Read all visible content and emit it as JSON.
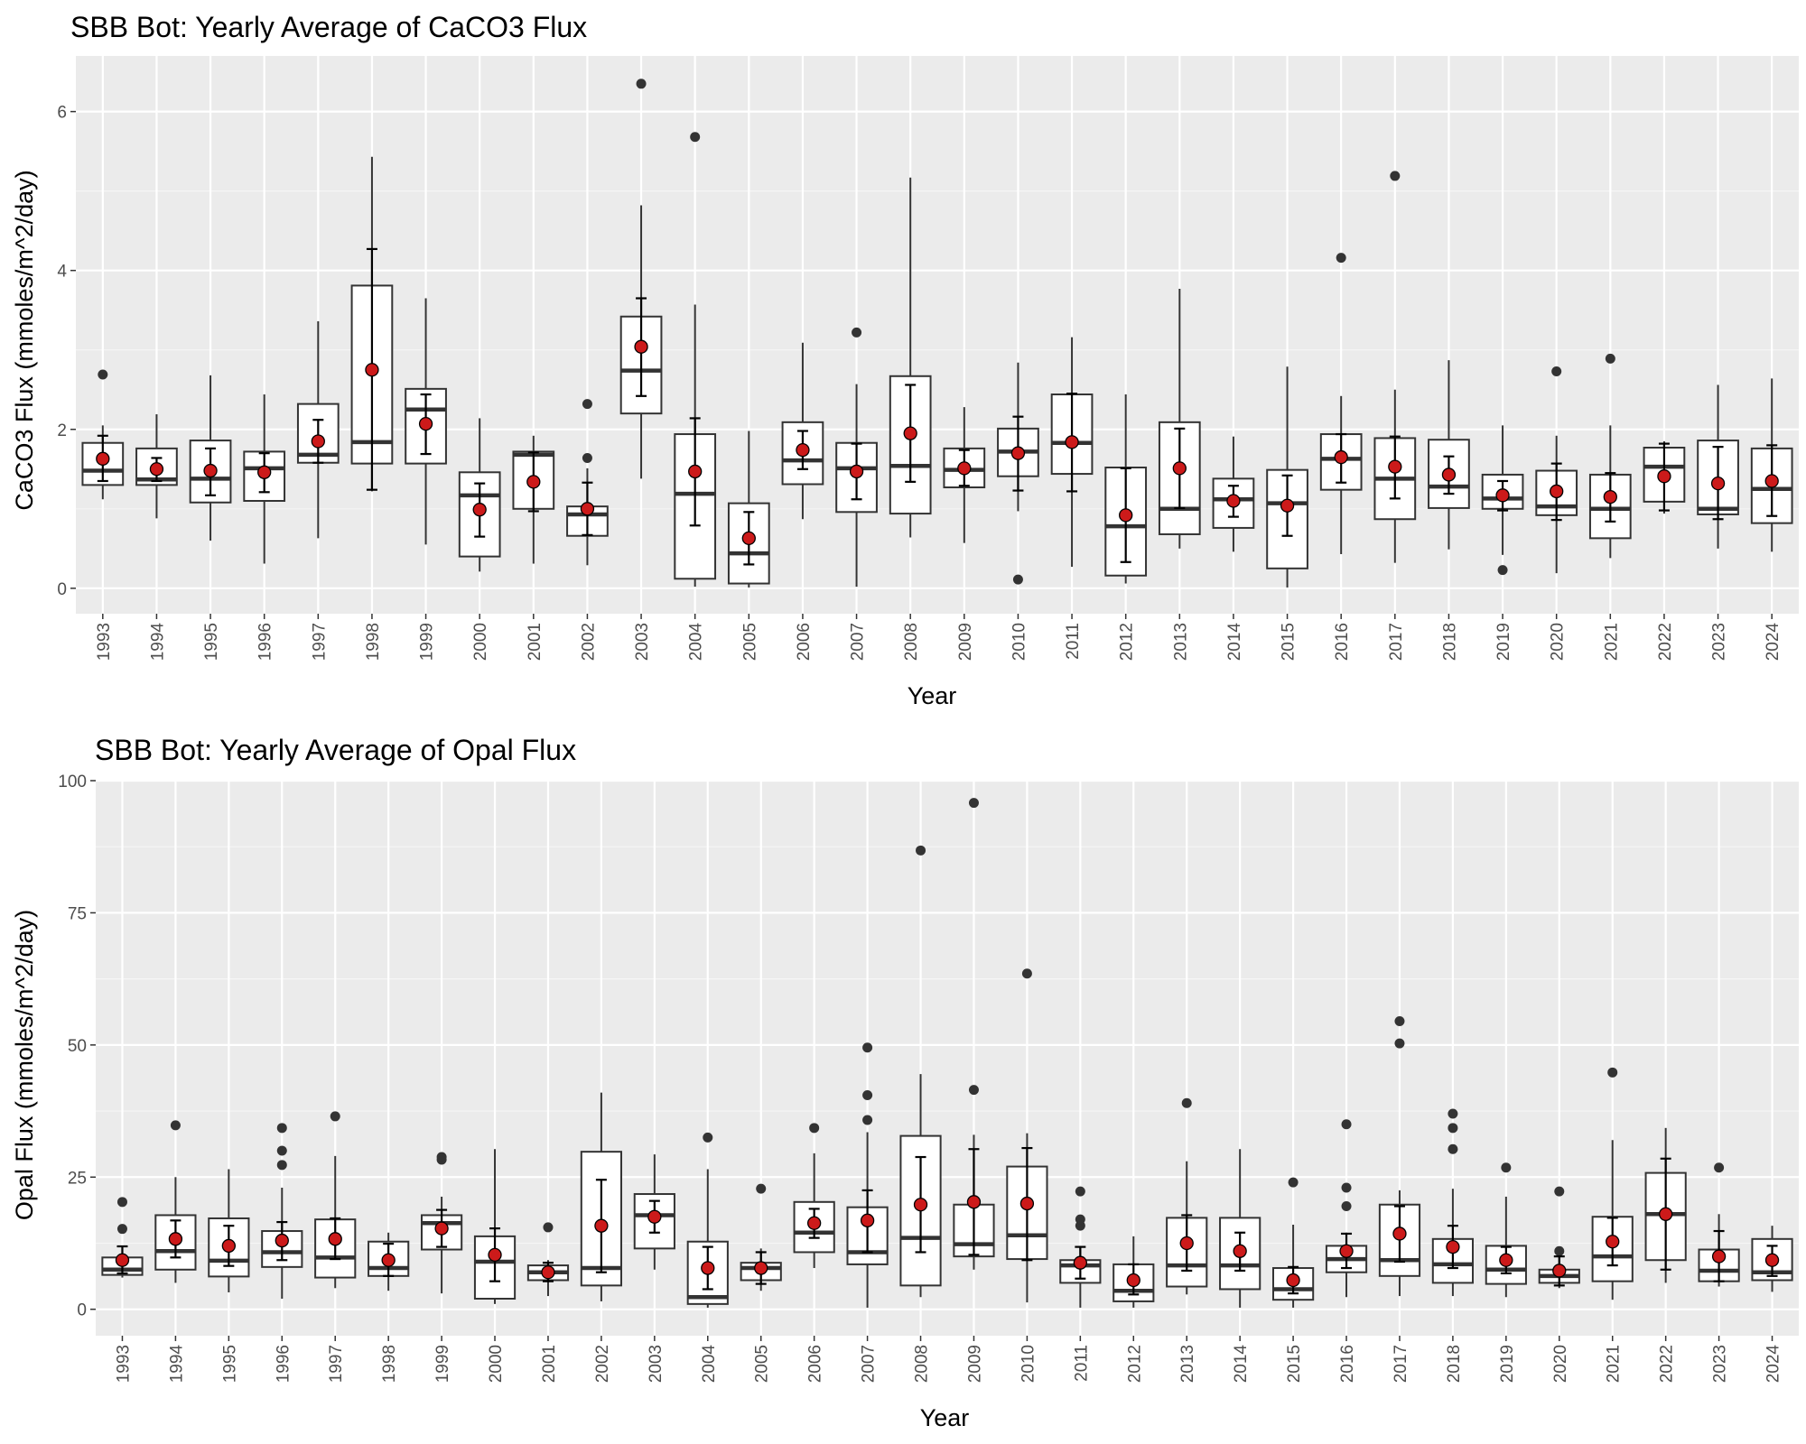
{
  "chart_data": [
    {
      "type": "boxplot",
      "title": "SBB Bot: Yearly Average of CaCO3 Flux",
      "xlabel": "Year",
      "ylabel": "CaCO3 Flux (mmoles/m^2/day)",
      "ylim": [
        -0.32,
        6.7
      ],
      "yticks": [
        0,
        2,
        4,
        6
      ],
      "grid": true,
      "mean_color": "#cc1a1a",
      "categories": [
        "1993",
        "1994",
        "1995",
        "1996",
        "1997",
        "1998",
        "1999",
        "2000",
        "2001",
        "2002",
        "2003",
        "2004",
        "2005",
        "2006",
        "2007",
        "2008",
        "2009",
        "2010",
        "2011",
        "2012",
        "2013",
        "2014",
        "2015",
        "2016",
        "2017",
        "2018",
        "2019",
        "2020",
        "2021",
        "2022",
        "2023",
        "2024"
      ],
      "boxes": [
        {
          "q1": 1.3,
          "med": 1.48,
          "q3": 1.83,
          "wlo": 1.12,
          "whi": 2.05,
          "mean": 1.63,
          "elo": 1.35,
          "ehi": 1.92,
          "out": [
            2.69
          ]
        },
        {
          "q1": 1.3,
          "med": 1.37,
          "q3": 1.76,
          "wlo": 0.88,
          "whi": 2.19,
          "mean": 1.5,
          "elo": 1.35,
          "ehi": 1.64,
          "out": []
        },
        {
          "q1": 1.08,
          "med": 1.38,
          "q3": 1.86,
          "wlo": 0.6,
          "whi": 2.68,
          "mean": 1.48,
          "elo": 1.17,
          "ehi": 1.76,
          "out": []
        },
        {
          "q1": 1.1,
          "med": 1.51,
          "q3": 1.72,
          "wlo": 0.31,
          "whi": 2.44,
          "mean": 1.46,
          "elo": 1.21,
          "ehi": 1.7,
          "out": []
        },
        {
          "q1": 1.58,
          "med": 1.68,
          "q3": 2.32,
          "wlo": 0.63,
          "whi": 3.36,
          "mean": 1.85,
          "elo": 1.58,
          "ehi": 2.12,
          "out": []
        },
        {
          "q1": 1.57,
          "med": 1.84,
          "q3": 3.81,
          "wlo": 1.22,
          "whi": 5.43,
          "mean": 2.75,
          "elo": 1.24,
          "ehi": 4.27,
          "out": []
        },
        {
          "q1": 1.57,
          "med": 2.25,
          "q3": 2.51,
          "wlo": 0.55,
          "whi": 3.65,
          "mean": 2.07,
          "elo": 1.69,
          "ehi": 2.44,
          "out": []
        },
        {
          "q1": 0.4,
          "med": 1.17,
          "q3": 1.46,
          "wlo": 0.21,
          "whi": 2.14,
          "mean": 0.99,
          "elo": 0.65,
          "ehi": 1.32,
          "out": []
        },
        {
          "q1": 1.0,
          "med": 1.68,
          "q3": 1.72,
          "wlo": 0.31,
          "whi": 1.92,
          "mean": 1.34,
          "elo": 0.97,
          "ehi": 1.71,
          "out": []
        },
        {
          "q1": 0.66,
          "med": 0.93,
          "q3": 1.03,
          "wlo": 0.29,
          "whi": 1.51,
          "mean": 1.0,
          "elo": 0.67,
          "ehi": 1.33,
          "out": [
            1.64,
            2.32
          ]
        },
        {
          "q1": 2.2,
          "med": 2.74,
          "q3": 3.42,
          "wlo": 1.38,
          "whi": 4.82,
          "mean": 3.04,
          "elo": 2.42,
          "ehi": 3.65,
          "out": [
            6.35
          ]
        },
        {
          "q1": 0.12,
          "med": 1.19,
          "q3": 1.94,
          "wlo": 0.02,
          "whi": 3.57,
          "mean": 1.47,
          "elo": 0.79,
          "ehi": 2.14,
          "out": [
            5.68
          ]
        },
        {
          "q1": 0.06,
          "med": 0.44,
          "q3": 1.07,
          "wlo": 0.01,
          "whi": 1.98,
          "mean": 0.63,
          "elo": 0.3,
          "ehi": 0.96,
          "out": []
        },
        {
          "q1": 1.31,
          "med": 1.61,
          "q3": 2.09,
          "wlo": 0.87,
          "whi": 3.09,
          "mean": 1.74,
          "elo": 1.5,
          "ehi": 1.98,
          "out": []
        },
        {
          "q1": 0.96,
          "med": 1.51,
          "q3": 1.83,
          "wlo": 0.02,
          "whi": 2.57,
          "mean": 1.47,
          "elo": 1.12,
          "ehi": 1.82,
          "out": [
            3.22
          ]
        },
        {
          "q1": 0.94,
          "med": 1.54,
          "q3": 2.67,
          "wlo": 0.64,
          "whi": 5.17,
          "mean": 1.95,
          "elo": 1.34,
          "ehi": 2.56,
          "out": []
        },
        {
          "q1": 1.27,
          "med": 1.49,
          "q3": 1.76,
          "wlo": 0.57,
          "whi": 2.28,
          "mean": 1.51,
          "elo": 1.29,
          "ehi": 1.74,
          "out": []
        },
        {
          "q1": 1.41,
          "med": 1.72,
          "q3": 2.01,
          "wlo": 0.97,
          "whi": 2.84,
          "mean": 1.7,
          "elo": 1.23,
          "ehi": 2.16,
          "out": [
            0.11
          ]
        },
        {
          "q1": 1.44,
          "med": 1.83,
          "q3": 2.44,
          "wlo": 0.27,
          "whi": 3.16,
          "mean": 1.84,
          "elo": 1.22,
          "ehi": 2.45,
          "out": []
        },
        {
          "q1": 0.16,
          "med": 0.78,
          "q3": 1.52,
          "wlo": 0.06,
          "whi": 2.44,
          "mean": 0.92,
          "elo": 0.33,
          "ehi": 1.51,
          "out": []
        },
        {
          "q1": 0.68,
          "med": 1.0,
          "q3": 2.09,
          "wlo": 0.5,
          "whi": 3.77,
          "mean": 1.51,
          "elo": 1.01,
          "ehi": 2.01,
          "out": []
        },
        {
          "q1": 0.76,
          "med": 1.12,
          "q3": 1.38,
          "wlo": 0.46,
          "whi": 1.91,
          "mean": 1.1,
          "elo": 0.9,
          "ehi": 1.29,
          "out": []
        },
        {
          "q1": 0.25,
          "med": 1.07,
          "q3": 1.49,
          "wlo": 0.01,
          "whi": 2.79,
          "mean": 1.04,
          "elo": 0.66,
          "ehi": 1.42,
          "out": []
        },
        {
          "q1": 1.24,
          "med": 1.63,
          "q3": 1.94,
          "wlo": 0.43,
          "whi": 2.42,
          "mean": 1.65,
          "elo": 1.33,
          "ehi": 1.94,
          "out": [
            4.16
          ]
        },
        {
          "q1": 0.87,
          "med": 1.38,
          "q3": 1.89,
          "wlo": 0.32,
          "whi": 2.5,
          "mean": 1.53,
          "elo": 1.13,
          "ehi": 1.91,
          "out": [
            5.19
          ]
        },
        {
          "q1": 1.01,
          "med": 1.28,
          "q3": 1.87,
          "wlo": 0.49,
          "whi": 2.87,
          "mean": 1.43,
          "elo": 1.19,
          "ehi": 1.66,
          "out": []
        },
        {
          "q1": 1.0,
          "med": 1.13,
          "q3": 1.43,
          "wlo": 0.42,
          "whi": 2.05,
          "mean": 1.17,
          "elo": 0.98,
          "ehi": 1.35,
          "out": [
            0.23
          ]
        },
        {
          "q1": 0.92,
          "med": 1.03,
          "q3": 1.48,
          "wlo": 0.19,
          "whi": 1.92,
          "mean": 1.22,
          "elo": 0.86,
          "ehi": 1.57,
          "out": [
            2.73
          ]
        },
        {
          "q1": 0.63,
          "med": 1.0,
          "q3": 1.43,
          "wlo": 0.38,
          "whi": 2.05,
          "mean": 1.15,
          "elo": 0.84,
          "ehi": 1.45,
          "out": [
            2.89
          ]
        },
        {
          "q1": 1.09,
          "med": 1.53,
          "q3": 1.77,
          "wlo": 0.94,
          "whi": 1.85,
          "mean": 1.41,
          "elo": 0.98,
          "ehi": 1.82,
          "out": []
        },
        {
          "q1": 0.93,
          "med": 1.0,
          "q3": 1.86,
          "wlo": 0.5,
          "whi": 2.56,
          "mean": 1.32,
          "elo": 0.87,
          "ehi": 1.78,
          "out": []
        },
        {
          "q1": 0.82,
          "med": 1.25,
          "q3": 1.76,
          "wlo": 0.46,
          "whi": 2.64,
          "mean": 1.35,
          "elo": 0.91,
          "ehi": 1.8,
          "out": []
        }
      ]
    },
    {
      "type": "boxplot",
      "title": "SBB Bot: Yearly Average of Opal Flux",
      "xlabel": "Year",
      "ylabel": "Opal Flux (mmoles/m^2/day)",
      "ylim": [
        -5,
        100
      ],
      "yticks": [
        0,
        25,
        50,
        75,
        100
      ],
      "grid": true,
      "mean_color": "#cc1a1a",
      "categories": [
        "1993",
        "1994",
        "1995",
        "1996",
        "1997",
        "1998",
        "1999",
        "2000",
        "2001",
        "2002",
        "2003",
        "2004",
        "2005",
        "2006",
        "2007",
        "2008",
        "2009",
        "2010",
        "2011",
        "2012",
        "2013",
        "2014",
        "2015",
        "2016",
        "2017",
        "2018",
        "2019",
        "2020",
        "2021",
        "2022",
        "2023",
        "2024"
      ],
      "boxes": [
        {
          "q1": 6.5,
          "med": 7.5,
          "q3": 9.8,
          "wlo": 6.0,
          "whi": 12.0,
          "mean": 9.3,
          "elo": 6.8,
          "ehi": 11.9,
          "out": [
            15.2,
            20.3
          ]
        },
        {
          "q1": 7.5,
          "med": 11.0,
          "q3": 17.8,
          "wlo": 5.0,
          "whi": 25.0,
          "mean": 13.3,
          "elo": 9.8,
          "ehi": 16.8,
          "out": [
            34.8
          ]
        },
        {
          "q1": 6.2,
          "med": 9.2,
          "q3": 17.2,
          "wlo": 3.2,
          "whi": 26.5,
          "mean": 12.0,
          "elo": 8.2,
          "ehi": 15.8,
          "out": []
        },
        {
          "q1": 8.0,
          "med": 10.8,
          "q3": 14.8,
          "wlo": 2.0,
          "whi": 23.0,
          "mean": 13.0,
          "elo": 9.3,
          "ehi": 16.5,
          "out": [
            27.3,
            30.0,
            34.3
          ]
        },
        {
          "q1": 6.0,
          "med": 9.8,
          "q3": 17.0,
          "wlo": 4.0,
          "whi": 29.0,
          "mean": 13.3,
          "elo": 9.5,
          "ehi": 17.2,
          "out": [
            36.5
          ]
        },
        {
          "q1": 6.3,
          "med": 7.8,
          "q3": 12.8,
          "wlo": 3.5,
          "whi": 14.5,
          "mean": 9.3,
          "elo": 6.3,
          "ehi": 12.4,
          "out": []
        },
        {
          "q1": 11.3,
          "med": 16.3,
          "q3": 17.8,
          "wlo": 3.0,
          "whi": 21.3,
          "mean": 15.3,
          "elo": 11.8,
          "ehi": 18.8,
          "out": [
            28.3,
            28.8
          ]
        },
        {
          "q1": 2.0,
          "med": 9.0,
          "q3": 13.8,
          "wlo": 1.0,
          "whi": 30.3,
          "mean": 10.3,
          "elo": 5.3,
          "ehi": 15.3,
          "out": []
        },
        {
          "q1": 5.5,
          "med": 7.0,
          "q3": 8.3,
          "wlo": 2.5,
          "whi": 9.3,
          "mean": 7.0,
          "elo": 5.3,
          "ehi": 8.8,
          "out": [
            15.5
          ]
        },
        {
          "q1": 4.5,
          "med": 7.8,
          "q3": 29.8,
          "wlo": 1.5,
          "whi": 41.0,
          "mean": 15.8,
          "elo": 7.0,
          "ehi": 24.5,
          "out": []
        },
        {
          "q1": 11.5,
          "med": 17.8,
          "q3": 21.8,
          "wlo": 7.5,
          "whi": 29.3,
          "mean": 17.5,
          "elo": 14.5,
          "ehi": 20.5,
          "out": []
        },
        {
          "q1": 1.0,
          "med": 2.3,
          "q3": 12.8,
          "wlo": 0.3,
          "whi": 26.5,
          "mean": 7.8,
          "elo": 3.8,
          "ehi": 11.8,
          "out": [
            32.5
          ]
        },
        {
          "q1": 5.5,
          "med": 7.8,
          "q3": 8.8,
          "wlo": 3.5,
          "whi": 11.5,
          "mean": 7.8,
          "elo": 4.8,
          "ehi": 10.8,
          "out": [
            22.8
          ]
        },
        {
          "q1": 10.8,
          "med": 14.5,
          "q3": 20.3,
          "wlo": 7.8,
          "whi": 29.5,
          "mean": 16.3,
          "elo": 13.5,
          "ehi": 19.0,
          "out": [
            34.3
          ]
        },
        {
          "q1": 8.5,
          "med": 10.8,
          "q3": 19.3,
          "wlo": 0.3,
          "whi": 33.5,
          "mean": 16.8,
          "elo": 10.8,
          "ehi": 22.5,
          "out": [
            35.8,
            40.5,
            49.5
          ]
        },
        {
          "q1": 4.5,
          "med": 13.5,
          "q3": 32.8,
          "wlo": 2.3,
          "whi": 44.5,
          "mean": 19.8,
          "elo": 10.8,
          "ehi": 28.8,
          "out": [
            86.8
          ]
        },
        {
          "q1": 10.0,
          "med": 12.3,
          "q3": 19.8,
          "wlo": 7.5,
          "whi": 33.0,
          "mean": 20.3,
          "elo": 10.3,
          "ehi": 30.3,
          "out": [
            41.5,
            95.8
          ]
        },
        {
          "q1": 9.5,
          "med": 14.0,
          "q3": 27.0,
          "wlo": 1.3,
          "whi": 33.3,
          "mean": 20.0,
          "elo": 9.3,
          "ehi": 30.5,
          "out": [
            63.5
          ]
        },
        {
          "q1": 5.0,
          "med": 8.3,
          "q3": 9.3,
          "wlo": 0.3,
          "whi": 12.0,
          "mean": 8.8,
          "elo": 5.8,
          "ehi": 11.8,
          "out": [
            15.8,
            17.0,
            22.3
          ]
        },
        {
          "q1": 1.5,
          "med": 3.5,
          "q3": 8.5,
          "wlo": 0.3,
          "whi": 13.8,
          "mean": 5.5,
          "elo": 2.8,
          "ehi": 8.5,
          "out": []
        },
        {
          "q1": 4.3,
          "med": 8.3,
          "q3": 17.3,
          "wlo": 2.8,
          "whi": 28.0,
          "mean": 12.5,
          "elo": 7.3,
          "ehi": 17.8,
          "out": [
            39.0
          ]
        },
        {
          "q1": 3.8,
          "med": 8.3,
          "q3": 17.3,
          "wlo": 0.3,
          "whi": 30.3,
          "mean": 11.0,
          "elo": 7.3,
          "ehi": 14.5,
          "out": []
        },
        {
          "q1": 1.8,
          "med": 3.8,
          "q3": 7.8,
          "wlo": 0.3,
          "whi": 16.0,
          "mean": 5.5,
          "elo": 3.0,
          "ehi": 8.0,
          "out": [
            24.0
          ]
        },
        {
          "q1": 7.0,
          "med": 9.5,
          "q3": 12.0,
          "wlo": 2.3,
          "whi": 14.5,
          "mean": 11.0,
          "elo": 7.8,
          "ehi": 14.3,
          "out": [
            19.5,
            23.0,
            35.0
          ]
        },
        {
          "q1": 6.3,
          "med": 9.3,
          "q3": 19.8,
          "wlo": 2.5,
          "whi": 22.5,
          "mean": 14.3,
          "elo": 9.0,
          "ehi": 19.5,
          "out": [
            50.3,
            54.5
          ]
        },
        {
          "q1": 5.0,
          "med": 8.5,
          "q3": 13.3,
          "wlo": 2.5,
          "whi": 22.8,
          "mean": 11.8,
          "elo": 7.8,
          "ehi": 15.8,
          "out": [
            30.3,
            34.3,
            37.0
          ]
        },
        {
          "q1": 4.8,
          "med": 7.5,
          "q3": 12.0,
          "wlo": 2.3,
          "whi": 21.3,
          "mean": 9.3,
          "elo": 6.8,
          "ehi": 11.8,
          "out": [
            26.8
          ]
        },
        {
          "q1": 5.0,
          "med": 6.3,
          "q3": 7.5,
          "wlo": 4.0,
          "whi": 10.5,
          "mean": 7.3,
          "elo": 4.5,
          "ehi": 10.0,
          "out": [
            11.0,
            22.3
          ]
        },
        {
          "q1": 5.3,
          "med": 10.0,
          "q3": 17.5,
          "wlo": 1.8,
          "whi": 32.0,
          "mean": 12.8,
          "elo": 8.3,
          "ehi": 17.3,
          "out": [
            44.8
          ]
        },
        {
          "q1": 9.3,
          "med": 18.0,
          "q3": 25.8,
          "wlo": 5.0,
          "whi": 34.3,
          "mean": 18.0,
          "elo": 7.5,
          "ehi": 28.5,
          "out": []
        },
        {
          "q1": 5.3,
          "med": 7.3,
          "q3": 11.3,
          "wlo": 4.3,
          "whi": 18.0,
          "mean": 10.0,
          "elo": 5.3,
          "ehi": 14.8,
          "out": [
            26.8
          ]
        },
        {
          "q1": 5.5,
          "med": 7.0,
          "q3": 13.3,
          "wlo": 3.3,
          "whi": 15.8,
          "mean": 9.3,
          "elo": 6.3,
          "ehi": 12.0,
          "out": []
        }
      ]
    }
  ]
}
